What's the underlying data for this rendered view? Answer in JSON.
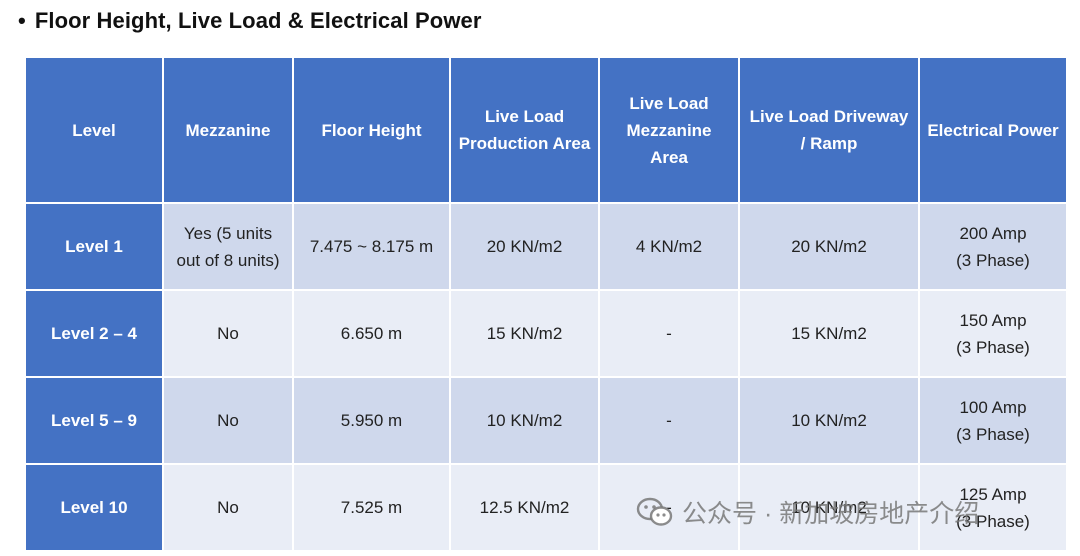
{
  "heading": {
    "bullet": "•",
    "text": "Floor Height, Live Load & Electrical Power"
  },
  "table": {
    "headers": [
      "Level",
      "Mezzanine",
      "Floor Height",
      "Live Load Production Area",
      "Live Load Mezzanine Area",
      "Live Load Driveway / Ramp",
      "Electrical Power"
    ],
    "rows": [
      {
        "level": "Level 1",
        "mezzanine": "Yes (5 units out of 8 units)",
        "floor_height": "7.475 ~ 8.175 m",
        "production": "20 KN/m2",
        "mezzanine_load": "4 KN/m2",
        "driveway": "20 KN/m2",
        "power_line1": "200 Amp",
        "power_line2": "(3 Phase)"
      },
      {
        "level": "Level 2 – 4",
        "mezzanine": "No",
        "floor_height": "6.650 m",
        "production": "15 KN/m2",
        "mezzanine_load": "-",
        "driveway": "15 KN/m2",
        "power_line1": "150 Amp",
        "power_line2": "(3 Phase)"
      },
      {
        "level": "Level 5 – 9",
        "mezzanine": "No",
        "floor_height": "5.950 m",
        "production": "10 KN/m2",
        "mezzanine_load": "-",
        "driveway": "10 KN/m2",
        "power_line1": "100 Amp",
        "power_line2": "(3 Phase)"
      },
      {
        "level": "Level 10",
        "mezzanine": "No",
        "floor_height": "7.525 m",
        "production": "12.5 KN/m2",
        "mezzanine_load": "-",
        "driveway": "10 KN/m2",
        "power_line1": "125 Amp",
        "power_line2": "(3 Phase)"
      }
    ]
  },
  "watermark": {
    "icon": "wechat-icon",
    "text": "公众号 · 新加坡房地产介绍"
  },
  "colors": {
    "header_blue": "#4472c4",
    "band_dark": "#cfd8ec",
    "band_light": "#e9edf6"
  }
}
